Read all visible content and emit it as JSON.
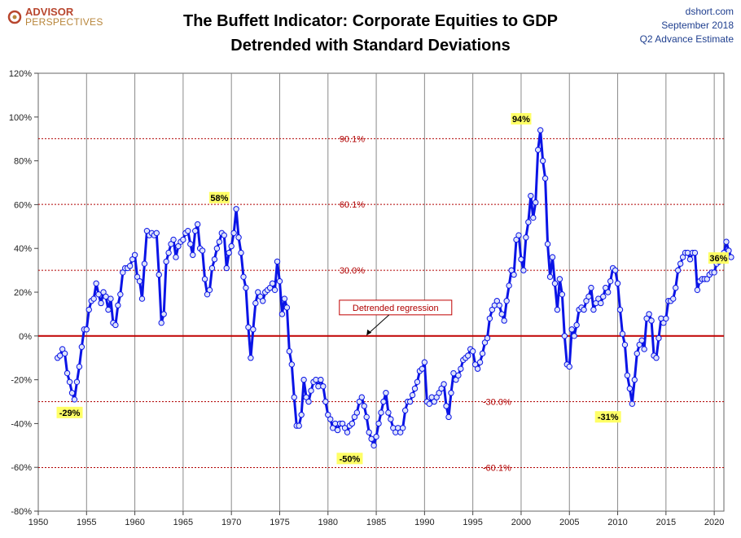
{
  "branding": {
    "logo_line1": "ADVISOR",
    "logo_line2": "PERSPECTIVES"
  },
  "source": {
    "site": "dshort.com",
    "date": "September 2018",
    "note": "Q2 Advance Estimate"
  },
  "colors": {
    "series": "#0a14e6",
    "marker_fill": "#dde3fa",
    "regression": "#c00000",
    "sd_lines": "#b00000",
    "label_bg": "#ffff66",
    "vgrid": "#8a8a8a",
    "source_text": "#1f3f8f"
  },
  "chart_data": {
    "type": "line",
    "title": "The Buffett Indicator: Corporate Equities to GDP",
    "subtitle": "Detrended with Standard Deviations",
    "xlabel": "",
    "ylabel": "",
    "xlim": [
      1950,
      2021
    ],
    "ylim": [
      -80,
      120
    ],
    "x_ticks": [
      1950,
      1955,
      1960,
      1965,
      1970,
      1975,
      1980,
      1985,
      1990,
      1995,
      2000,
      2005,
      2010,
      2015,
      2020
    ],
    "y_ticks": [
      -80,
      -60,
      -40,
      -20,
      0,
      20,
      40,
      60,
      80,
      100,
      120
    ],
    "y_tick_format": "percent",
    "grid": {
      "vertical": true,
      "horizontal": false
    },
    "reference_lines": [
      {
        "y": 90.1,
        "label": "90.1%",
        "style": "dotted"
      },
      {
        "y": 60.1,
        "label": "60.1%",
        "style": "dotted"
      },
      {
        "y": 30.0,
        "label": "30.0%",
        "style": "dotted"
      },
      {
        "y": 0,
        "label": "Detrended regression",
        "style": "solid",
        "label_position": [
          1987,
          13
        ],
        "arrow_to": [
          1984,
          0
        ]
      },
      {
        "y": -30.0,
        "label": "-30.0%",
        "style": "dotted"
      },
      {
        "y": -60.1,
        "label": "-60.1%",
        "style": "dotted"
      }
    ],
    "annotations": [
      {
        "text": "-29%",
        "x": 1953.25,
        "y": -29
      },
      {
        "text": "58%",
        "x": 1968.75,
        "y": 58
      },
      {
        "text": "-50%",
        "x": 1982.25,
        "y": -50
      },
      {
        "text": "94%",
        "x": 2000.0,
        "y": 94
      },
      {
        "text": "-31%",
        "x": 2009.0,
        "y": -31
      },
      {
        "text": "36%",
        "x": 2018.25,
        "y": 36
      }
    ],
    "series": [
      {
        "start_x": 1952.0,
        "step": 0.25,
        "values": [
          -10,
          -9,
          -6,
          -8,
          -17,
          -21,
          -26,
          -29,
          -21,
          -14,
          -5,
          3,
          3,
          12,
          16,
          17,
          24,
          19,
          15,
          20,
          18,
          12,
          17,
          6,
          5,
          14,
          19,
          29,
          31,
          31,
          32,
          35,
          37,
          27,
          25,
          17,
          33,
          48,
          46,
          47,
          46,
          47,
          28,
          6,
          10,
          34,
          38,
          42,
          44,
          36,
          41,
          43,
          44,
          47,
          48,
          42,
          37,
          48,
          51,
          40,
          39,
          26,
          19,
          21,
          31,
          35,
          40,
          43,
          47,
          46,
          31,
          38,
          41,
          47,
          58,
          45,
          38,
          27,
          22,
          4,
          -10,
          3,
          15,
          20,
          18,
          16,
          20,
          21,
          22,
          24,
          21,
          34,
          25,
          10,
          17,
          13,
          -7,
          -13,
          -28,
          -41,
          -41,
          -36,
          -20,
          -28,
          -30,
          -25,
          -21,
          -20,
          -23,
          -20,
          -23,
          -30,
          -36,
          -38,
          -42,
          -40,
          -43,
          -40,
          -40,
          -42,
          -44,
          -41,
          -40,
          -37,
          -35,
          -30,
          -28,
          -32,
          -37,
          -44,
          -47,
          -50,
          -46,
          -40,
          -35,
          -30,
          -26,
          -35,
          -38,
          -42,
          -44,
          -42,
          -44,
          -42,
          -34,
          -30,
          -30,
          -27,
          -24,
          -21,
          -16,
          -15,
          -12,
          -30,
          -31,
          -28,
          -30,
          -28,
          -26,
          -24,
          -22,
          -32,
          -37,
          -26,
          -17,
          -20,
          -18,
          -15,
          -11,
          -10,
          -9,
          -6,
          -7,
          -13,
          -15,
          -12,
          -8,
          -3,
          -1,
          8,
          12,
          14,
          16,
          14,
          10,
          7,
          16,
          23,
          30,
          28,
          44,
          46,
          35,
          30,
          45,
          52,
          64,
          54,
          61,
          85,
          94,
          80,
          72,
          42,
          27,
          36,
          24,
          12,
          26,
          19,
          0,
          -13,
          -14,
          3,
          0,
          5,
          12,
          13,
          12,
          16,
          18,
          22,
          12,
          15,
          17,
          15,
          18,
          22,
          20,
          25,
          31,
          30,
          24,
          12,
          1,
          -4,
          -18,
          -24,
          -31,
          -20,
          -8,
          -4,
          -2,
          -6,
          8,
          10,
          7,
          -9,
          -10,
          -1,
          8,
          6,
          8,
          16,
          16,
          17,
          22,
          30,
          33,
          36,
          38,
          38,
          35,
          38,
          38,
          21,
          25,
          26,
          26,
          26,
          28,
          29,
          29,
          33,
          34,
          36,
          38,
          43,
          39,
          36
        ]
      }
    ]
  }
}
